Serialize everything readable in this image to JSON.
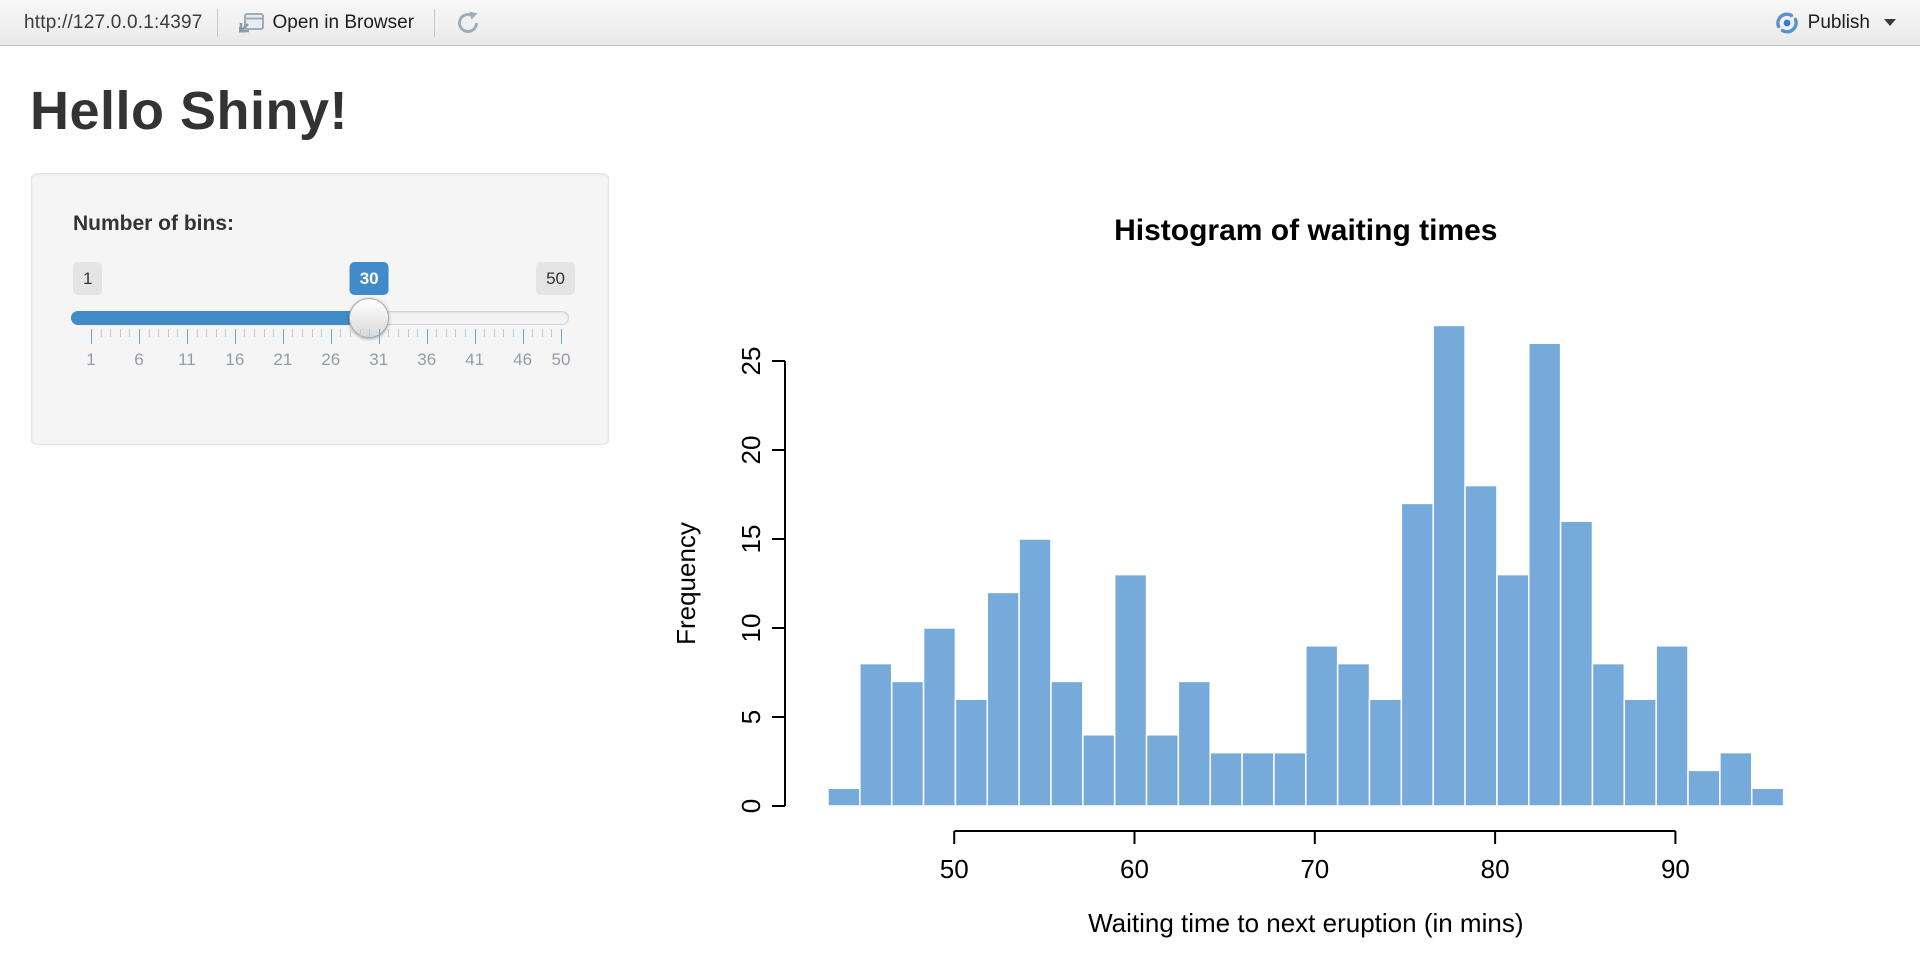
{
  "toolbar": {
    "url": "http://127.0.0.1:4397",
    "open_in_browser_label": "Open in Browser",
    "publish_label": "Publish"
  },
  "page": {
    "title": "Hello Shiny!"
  },
  "sidebar": {
    "slider_label": "Number of bins:",
    "slider": {
      "min": 1,
      "max": 50,
      "value": 30,
      "grid_labels": [
        1,
        6,
        11,
        16,
        21,
        26,
        31,
        36,
        41,
        46,
        50
      ],
      "accent_color": "#428bca"
    }
  },
  "chart_data": {
    "type": "bar",
    "title": "Histogram of waiting times",
    "xlabel": "Waiting time to next eruption (in mins)",
    "ylabel": "Frequency",
    "bin_start": 43,
    "bin_end": 96,
    "counts": [
      1,
      8,
      7,
      10,
      6,
      12,
      15,
      7,
      4,
      13,
      4,
      7,
      3,
      3,
      3,
      9,
      8,
      6,
      17,
      27,
      18,
      13,
      26,
      16,
      8,
      6,
      9,
      2,
      3,
      1
    ],
    "x_ticks": [
      50,
      60,
      70,
      80,
      90
    ],
    "y_ticks": [
      0,
      5,
      10,
      15,
      20,
      25
    ],
    "xlim": [
      43,
      96
    ],
    "ylim": [
      0,
      27
    ],
    "grid": false,
    "legend": "none",
    "bar_color": "#75AADB",
    "bar_border": "#ffffff"
  }
}
